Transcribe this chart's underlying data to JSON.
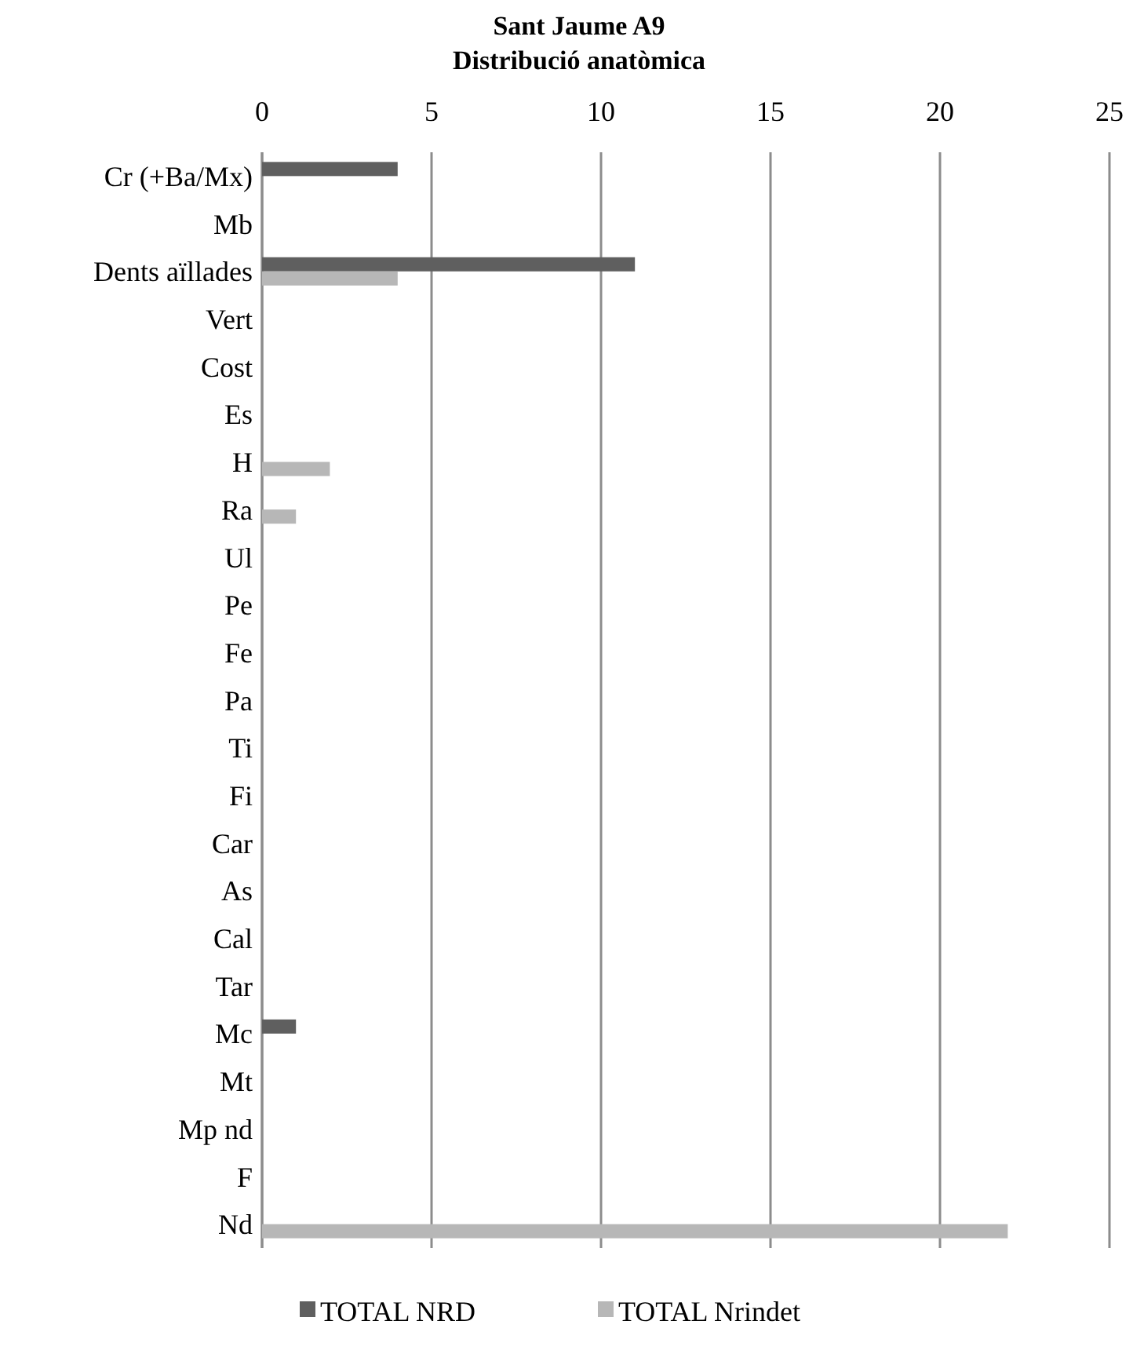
{
  "chart_data": {
    "type": "bar",
    "orientation": "horizontal",
    "title": "Sant Jaume A9",
    "subtitle": "Distribució anatòmica",
    "categories": [
      "Cr (+Ba/Mx)",
      "Mb",
      "Dents aïllades",
      "Vert",
      "Cost",
      "Es",
      "H",
      "Ra",
      "Ul",
      "Pe",
      "Fe",
      "Pa",
      "Ti",
      "Fi",
      "Car",
      "As",
      "Cal",
      "Tar",
      "Mc",
      "Mt",
      "Mp nd",
      "F",
      "Nd"
    ],
    "series": [
      {
        "name": "TOTAL NRD",
        "color": "#5f5f5f",
        "values": [
          4,
          null,
          11,
          null,
          null,
          null,
          null,
          null,
          null,
          null,
          null,
          null,
          null,
          null,
          null,
          null,
          null,
          null,
          1,
          null,
          null,
          null,
          null
        ]
      },
      {
        "name": "TOTAL Nrindet",
        "color": "#b7b7b7",
        "values": [
          null,
          null,
          4,
          null,
          null,
          null,
          2,
          1,
          null,
          null,
          null,
          null,
          null,
          null,
          null,
          null,
          null,
          null,
          null,
          null,
          null,
          null,
          22
        ]
      }
    ],
    "xlim": [
      0,
      25
    ],
    "xticks": [
      0,
      5,
      10,
      15,
      20,
      25
    ],
    "grid": "x",
    "legend": "bottom"
  }
}
